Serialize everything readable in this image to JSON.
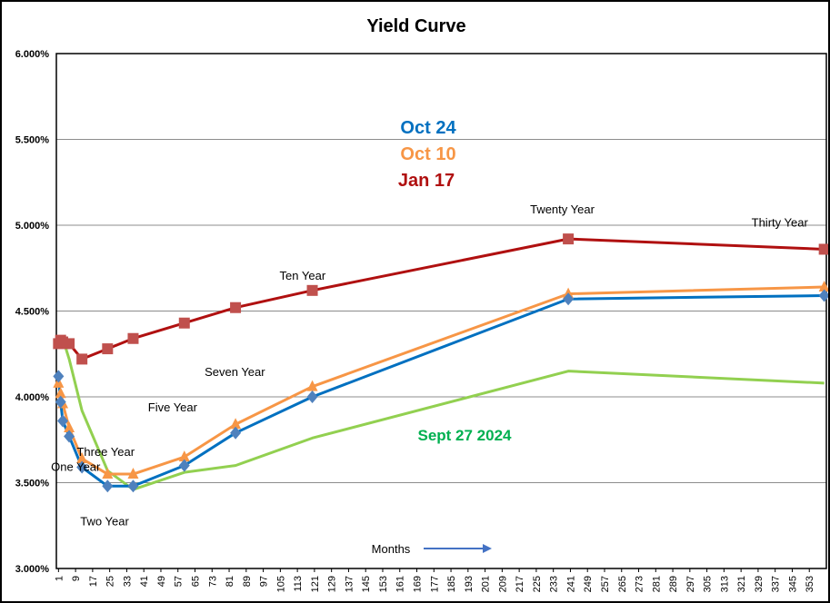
{
  "chart_data": {
    "type": "line",
    "title": "Yield Curve",
    "xlabel": "Months",
    "ylabel": "",
    "ylim": [
      3.0,
      6.0
    ],
    "xlim": [
      0,
      361
    ],
    "y_ticks": [
      "3.000%",
      "3.500%",
      "4.000%",
      "4.500%",
      "5.000%",
      "5.500%",
      "6.000%"
    ],
    "y_tick_values": [
      3.0,
      3.5,
      4.0,
      4.5,
      5.0,
      5.5,
      6.0
    ],
    "x_ticks": [
      1,
      9,
      17,
      25,
      33,
      41,
      49,
      57,
      65,
      73,
      81,
      89,
      97,
      105,
      113,
      121,
      129,
      137,
      145,
      153,
      161,
      169,
      177,
      185,
      193,
      201,
      209,
      217,
      225,
      233,
      241,
      249,
      257,
      265,
      273,
      281,
      289,
      297,
      305,
      313,
      321,
      329,
      337,
      345,
      353
    ],
    "grid": true,
    "legend": "center-top, text labels",
    "series": [
      {
        "name": "Jan 17",
        "color": "#c0504d",
        "line_color": "#b01010",
        "marker": "square",
        "dashed_segments": [],
        "x": [
          1,
          2,
          3,
          6,
          12,
          24,
          36,
          60,
          84,
          120,
          240,
          360
        ],
        "y": [
          4.31,
          4.33,
          4.32,
          4.31,
          4.22,
          4.28,
          4.34,
          4.43,
          4.52,
          4.62,
          4.92,
          4.86
        ]
      },
      {
        "name": "Oct 10",
        "color": "#f79646",
        "line_color": "#f79646",
        "marker": "triangle",
        "dashed_segments": [],
        "x": [
          1,
          2,
          3,
          6,
          12,
          24,
          36,
          60,
          84,
          120,
          240,
          360
        ],
        "y": [
          4.08,
          4.02,
          3.96,
          3.82,
          3.64,
          3.55,
          3.55,
          3.65,
          3.84,
          4.06,
          4.6,
          4.64
        ]
      },
      {
        "name": "Oct 24",
        "color": "#4f81bd",
        "line_color": "#0070c0",
        "marker": "diamond",
        "dashed_segments": [],
        "x": [
          1,
          2,
          3,
          6,
          12,
          24,
          36,
          60,
          84,
          120,
          240,
          360
        ],
        "y": [
          4.12,
          3.97,
          3.86,
          3.77,
          3.59,
          3.48,
          3.48,
          3.6,
          3.79,
          4.0,
          4.57,
          4.59
        ]
      },
      {
        "name": "Sept 27 2024",
        "color": "#92d050",
        "line_color": "#92d050",
        "marker": "none",
        "dashed_segments": [],
        "x": [
          1,
          3,
          6,
          12,
          24,
          36,
          60,
          84,
          120,
          240,
          360
        ],
        "y": [
          4.3,
          4.34,
          4.22,
          3.92,
          3.57,
          3.46,
          3.56,
          3.6,
          3.76,
          4.15,
          4.08
        ]
      }
    ],
    "annotations": [
      {
        "text": "One Year",
        "x": 12,
        "y": 3.59
      },
      {
        "text": "Two Year",
        "x": 24,
        "y": 3.48
      },
      {
        "text": "Three Year",
        "x": 36,
        "y": 3.55
      },
      {
        "text": "Five Year",
        "x": 60,
        "y": 3.65
      },
      {
        "text": "Seven Year",
        "x": 84,
        "y": 3.84
      },
      {
        "text": "Ten Year",
        "x": 120,
        "y": 4.62
      },
      {
        "text": "Twenty Year",
        "x": 240,
        "y": 4.92
      },
      {
        "text": "Thirty Year",
        "x": 360,
        "y": 4.86
      }
    ]
  }
}
